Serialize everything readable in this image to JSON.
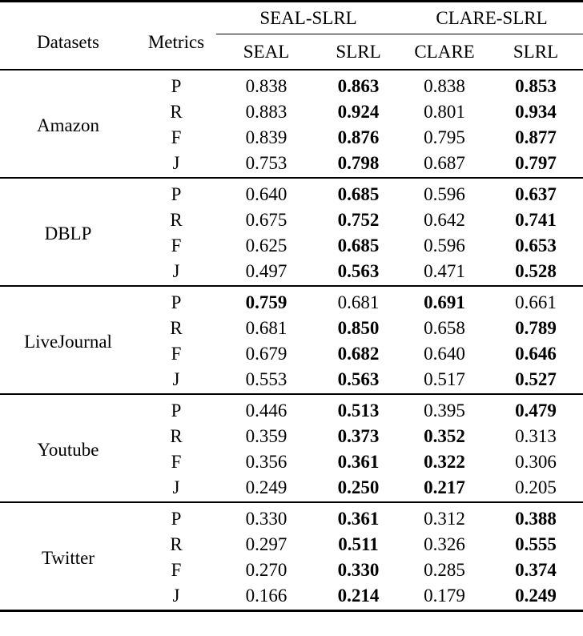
{
  "table": {
    "header": {
      "datasets": "Datasets",
      "metrics": "Metrics",
      "group1": "SEAL-SLRL",
      "group2": "CLARE-SLRL",
      "sub": [
        "SEAL",
        "SLRL",
        "CLARE",
        "SLRL"
      ]
    },
    "groups": [
      {
        "dataset": "Amazon",
        "rows": [
          {
            "metric": "P",
            "values": [
              "0.838",
              "0.863",
              "0.838",
              "0.853"
            ],
            "bold": [
              false,
              true,
              false,
              true
            ]
          },
          {
            "metric": "R",
            "values": [
              "0.883",
              "0.924",
              "0.801",
              "0.934"
            ],
            "bold": [
              false,
              true,
              false,
              true
            ]
          },
          {
            "metric": "F",
            "values": [
              "0.839",
              "0.876",
              "0.795",
              "0.877"
            ],
            "bold": [
              false,
              true,
              false,
              true
            ]
          },
          {
            "metric": "J",
            "values": [
              "0.753",
              "0.798",
              "0.687",
              "0.797"
            ],
            "bold": [
              false,
              true,
              false,
              true
            ]
          }
        ]
      },
      {
        "dataset": "DBLP",
        "rows": [
          {
            "metric": "P",
            "values": [
              "0.640",
              "0.685",
              "0.596",
              "0.637"
            ],
            "bold": [
              false,
              true,
              false,
              true
            ]
          },
          {
            "metric": "R",
            "values": [
              "0.675",
              "0.752",
              "0.642",
              "0.741"
            ],
            "bold": [
              false,
              true,
              false,
              true
            ]
          },
          {
            "metric": "F",
            "values": [
              "0.625",
              "0.685",
              "0.596",
              "0.653"
            ],
            "bold": [
              false,
              true,
              false,
              true
            ]
          },
          {
            "metric": "J",
            "values": [
              "0.497",
              "0.563",
              "0.471",
              "0.528"
            ],
            "bold": [
              false,
              true,
              false,
              true
            ]
          }
        ]
      },
      {
        "dataset": "LiveJournal",
        "rows": [
          {
            "metric": "P",
            "values": [
              "0.759",
              "0.681",
              "0.691",
              "0.661"
            ],
            "bold": [
              true,
              false,
              true,
              false
            ]
          },
          {
            "metric": "R",
            "values": [
              "0.681",
              "0.850",
              "0.658",
              "0.789"
            ],
            "bold": [
              false,
              true,
              false,
              true
            ]
          },
          {
            "metric": "F",
            "values": [
              "0.679",
              "0.682",
              "0.640",
              "0.646"
            ],
            "bold": [
              false,
              true,
              false,
              true
            ]
          },
          {
            "metric": "J",
            "values": [
              "0.553",
              "0.563",
              "0.517",
              "0.527"
            ],
            "bold": [
              false,
              true,
              false,
              true
            ]
          }
        ]
      },
      {
        "dataset": "Youtube",
        "rows": [
          {
            "metric": "P",
            "values": [
              "0.446",
              "0.513",
              "0.395",
              "0.479"
            ],
            "bold": [
              false,
              true,
              false,
              true
            ]
          },
          {
            "metric": "R",
            "values": [
              "0.359",
              "0.373",
              "0.352",
              "0.313"
            ],
            "bold": [
              false,
              true,
              true,
              false
            ]
          },
          {
            "metric": "F",
            "values": [
              "0.356",
              "0.361",
              "0.322",
              "0.306"
            ],
            "bold": [
              false,
              true,
              true,
              false
            ]
          },
          {
            "metric": "J",
            "values": [
              "0.249",
              "0.250",
              "0.217",
              "0.205"
            ],
            "bold": [
              false,
              true,
              true,
              false
            ]
          }
        ]
      },
      {
        "dataset": "Twitter",
        "rows": [
          {
            "metric": "P",
            "values": [
              "0.330",
              "0.361",
              "0.312",
              "0.388"
            ],
            "bold": [
              false,
              true,
              false,
              true
            ]
          },
          {
            "metric": "R",
            "values": [
              "0.297",
              "0.511",
              "0.326",
              "0.555"
            ],
            "bold": [
              false,
              true,
              false,
              true
            ]
          },
          {
            "metric": "F",
            "values": [
              "0.270",
              "0.330",
              "0.285",
              "0.374"
            ],
            "bold": [
              false,
              true,
              false,
              true
            ]
          },
          {
            "metric": "J",
            "values": [
              "0.166",
              "0.214",
              "0.179",
              "0.249"
            ],
            "bold": [
              false,
              true,
              false,
              true
            ]
          }
        ]
      }
    ]
  }
}
